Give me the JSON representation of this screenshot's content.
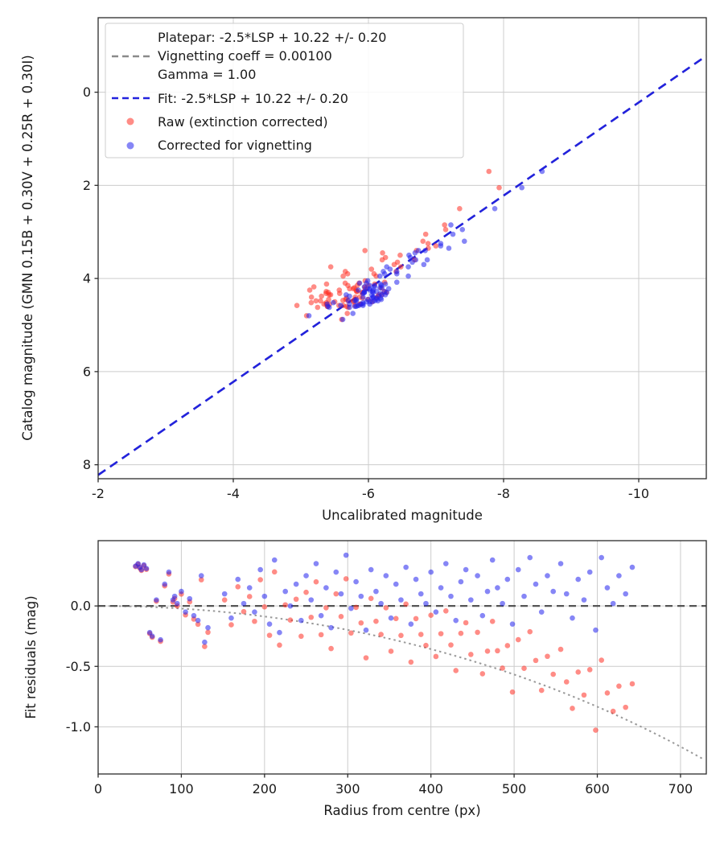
{
  "chart_data": {
    "type": "scatter",
    "plots": {
      "top": {
        "xlabel": "Uncalibrated magnitude",
        "ylabel": "Catalog magnitude (GMN 0.15B + 0.30V + 0.25R + 0.30I)",
        "xticks": [
          -2,
          -4,
          -6,
          -8,
          -10
        ],
        "yticks": [
          0,
          2,
          4,
          6,
          8
        ],
        "xlim": [
          -2,
          -11
        ],
        "ylim": [
          -1.6,
          8.3
        ],
        "grid": true
      },
      "bottom": {
        "xlabel": "Radius from centre (px)",
        "ylabel": "Fit residuals (mag)",
        "xticks": [
          0,
          100,
          200,
          300,
          400,
          500,
          600,
          700
        ],
        "yticks": [
          0,
          -0.5,
          -1.0
        ],
        "ytick_labels": [
          "0.0",
          "-0.5",
          "-1.0"
        ],
        "xlim": [
          0,
          731
        ],
        "ylim": [
          0.54,
          -1.39
        ],
        "grid": true
      }
    },
    "legend": {
      "platepar": "Platepar: -2.5*LSP + 10.22 +/- 0.20",
      "vignetting": "Vignetting coeff = 0.00100",
      "gamma": "Gamma = 1.00",
      "fit": "Fit: -2.5*LSP + 10.22 +/- 0.20",
      "raw": "Raw (extinction corrected)",
      "corrected": "Corrected for vignetting"
    },
    "fit": {
      "slope": 1,
      "intercept": 10.22,
      "uncertainty": 0.2
    },
    "vignetting_coeff": 0.001,
    "gamma": 1.0,
    "colors": {
      "raw": "#ff2d23",
      "corrected": "#2222ee",
      "fit_line": "#2222dd",
      "platepar_line": "#8a8a8a",
      "model_curve": "#999999",
      "zero_line": "#555555"
    },
    "stars_note": "each star: [radius_px, catalog_mag, residual_after_vignetting_correction]",
    "stars": [
      [
        45,
        4.35,
        0.33
      ],
      [
        48,
        4.3,
        0.35
      ],
      [
        50,
        4.42,
        0.32
      ],
      [
        52,
        4.28,
        0.3
      ],
      [
        55,
        4.5,
        0.34
      ],
      [
        58,
        4.38,
        0.31
      ],
      [
        62,
        4.6,
        -0.22
      ],
      [
        65,
        4.1,
        -0.25
      ],
      [
        70,
        3.85,
        0.05
      ],
      [
        75,
        4.55,
        -0.28
      ],
      [
        80,
        4.2,
        0.18
      ],
      [
        85,
        4.88,
        0.28
      ],
      [
        90,
        4.45,
        0.05
      ],
      [
        92,
        3.6,
        0.08
      ],
      [
        95,
        4.3,
        0.02
      ],
      [
        100,
        4.62,
        0.12
      ],
      [
        105,
        4.15,
        -0.05
      ],
      [
        110,
        4.48,
        0.06
      ],
      [
        115,
        3.4,
        -0.08
      ],
      [
        120,
        4.25,
        -0.12
      ],
      [
        124,
        4.55,
        0.25
      ],
      [
        128,
        4.8,
        -0.3
      ],
      [
        132,
        4.05,
        -0.18
      ],
      [
        152,
        4.4,
        0.1
      ],
      [
        160,
        3.95,
        -0.1
      ],
      [
        168,
        4.58,
        0.22
      ],
      [
        175,
        4.22,
        0.02
      ],
      [
        182,
        3.3,
        0.15
      ],
      [
        188,
        4.47,
        -0.05
      ],
      [
        195,
        4.75,
        0.3
      ],
      [
        200,
        4.12,
        0.08
      ],
      [
        206,
        2.85,
        -0.15
      ],
      [
        212,
        4.35,
        0.38
      ],
      [
        218,
        4.52,
        -0.22
      ],
      [
        225,
        3.75,
        0.12
      ],
      [
        231,
        4.28,
        0.0
      ],
      [
        238,
        4.6,
        0.18
      ],
      [
        244,
        3.5,
        -0.12
      ],
      [
        250,
        4.42,
        0.25
      ],
      [
        256,
        4.18,
        0.05
      ],
      [
        262,
        4.55,
        0.35
      ],
      [
        268,
        3.9,
        -0.08
      ],
      [
        274,
        4.3,
        0.15
      ],
      [
        280,
        4.62,
        -0.18
      ],
      [
        286,
        4.08,
        0.28
      ],
      [
        292,
        3.25,
        0.1
      ],
      [
        298,
        4.45,
        0.42
      ],
      [
        304,
        4.22,
        -0.02
      ],
      [
        310,
        4.58,
        0.2
      ],
      [
        316,
        3.65,
        0.08
      ],
      [
        322,
        4.35,
        -0.2
      ],
      [
        328,
        4.5,
        0.3
      ],
      [
        334,
        2.95,
        0.12
      ],
      [
        340,
        4.15,
        0.02
      ],
      [
        346,
        4.4,
        0.25
      ],
      [
        352,
        3.8,
        -0.1
      ],
      [
        358,
        4.28,
        0.18
      ],
      [
        364,
        4.55,
        0.05
      ],
      [
        370,
        3.35,
        0.32
      ],
      [
        376,
        4.1,
        -0.15
      ],
      [
        382,
        4.45,
        0.22
      ],
      [
        388,
        2.05,
        0.1
      ],
      [
        394,
        4.32,
        0.02
      ],
      [
        400,
        4.58,
        0.28
      ],
      [
        406,
        3.55,
        -0.05
      ],
      [
        412,
        4.2,
        0.15
      ],
      [
        418,
        4.48,
        0.35
      ],
      [
        424,
        3.05,
        0.08
      ],
      [
        430,
        4.38,
        -0.12
      ],
      [
        436,
        4.6,
        0.2
      ],
      [
        442,
        3.7,
        0.3
      ],
      [
        448,
        4.25,
        0.05
      ],
      [
        456,
        4.5,
        0.25
      ],
      [
        462,
        3.45,
        -0.08
      ],
      [
        468,
        4.15,
        0.12
      ],
      [
        474,
        4.42,
        0.38
      ],
      [
        480,
        2.5,
        0.15
      ],
      [
        486,
        4.3,
        0.02
      ],
      [
        492,
        4.55,
        0.22
      ],
      [
        498,
        3.85,
        -0.15
      ],
      [
        505,
        4.22,
        0.3
      ],
      [
        512,
        4.48,
        0.08
      ],
      [
        519,
        3.2,
        0.4
      ],
      [
        526,
        4.35,
        0.18
      ],
      [
        533,
        4.58,
        -0.05
      ],
      [
        540,
        3.6,
        0.25
      ],
      [
        547,
        4.28,
        0.12
      ],
      [
        556,
        4.45,
        0.35
      ],
      [
        563,
        3.9,
        0.1
      ],
      [
        570,
        4.18,
        -0.1
      ],
      [
        577,
        4.52,
        0.22
      ],
      [
        584,
        1.7,
        0.05
      ],
      [
        591,
        4.32,
        0.28
      ],
      [
        598,
        3.75,
        -0.2
      ],
      [
        605,
        4.48,
        0.4
      ],
      [
        612,
        4.12,
        0.15
      ],
      [
        619,
        3.4,
        0.02
      ],
      [
        626,
        4.4,
        0.25
      ],
      [
        634,
        4.25,
        0.1
      ],
      [
        642,
        3.95,
        0.32
      ]
    ]
  }
}
